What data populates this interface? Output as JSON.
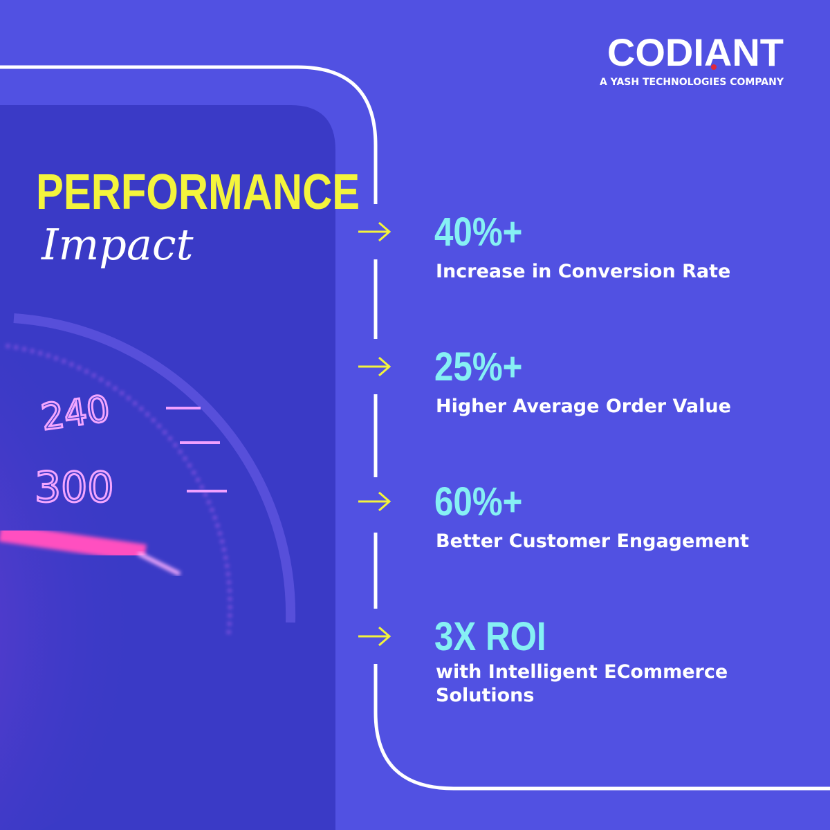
{
  "brand": {
    "name": "CODIANT",
    "tagline": "A YASH TECHNOLOGIES COMPANY"
  },
  "heading": {
    "title": "PERFORMANCE",
    "script": "Impact"
  },
  "gauge": {
    "labels": [
      "240",
      "300"
    ]
  },
  "stats": [
    {
      "value": "40%+",
      "label": "Increase in Conversion Rate"
    },
    {
      "value": "25%+",
      "label": "Higher Average Order Value"
    },
    {
      "value": "60%+",
      "label": "Better Customer Engagement"
    },
    {
      "value": "3X ROI",
      "label": "with Intelligent ECommerce Solutions"
    }
  ]
}
